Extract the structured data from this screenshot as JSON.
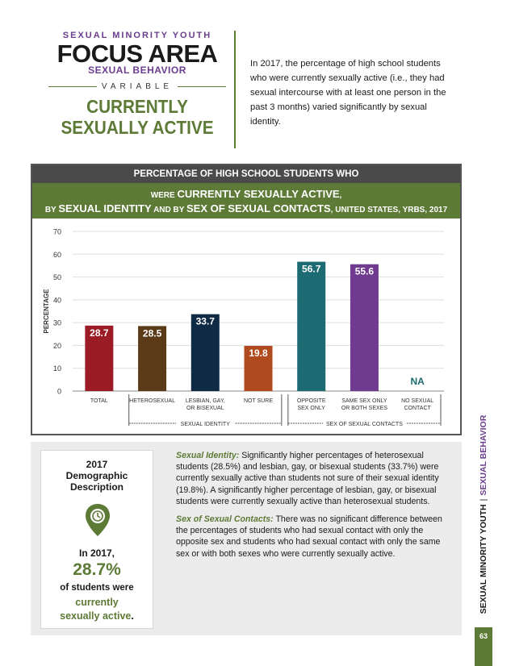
{
  "header": {
    "eyebrow": "SEXUAL MINORITY YOUTH",
    "brand": "FOCUS AREA",
    "subtitle": "SEXUAL BEHAVIOR",
    "variable_label": "VARIABLE",
    "title_line1": "CURRENTLY",
    "title_line2": "SEXUALLY ACTIVE",
    "intro": "In 2017, the percentage of high school students who were currently sexually active (i.e., they had sexual intercourse with at least one person in the past 3 months) varied significantly by sexual identity."
  },
  "chart_header": {
    "line1": "PERCENTAGE OF HIGH SCHOOL STUDENTS WHO",
    "line2_a": "WERE ",
    "line2_b": "CURRENTLY SEXUALLY ACTIVE",
    "line2_c": ",",
    "line3_a": "BY ",
    "line3_b": "SEXUAL IDENTITY",
    "line3_c": " AND BY ",
    "line3_d": "SEX OF SEXUAL CONTACTS",
    "line3_e": ", UNITED STATES, YRBS, 2017"
  },
  "chart_data": {
    "type": "bar",
    "ylabel": "PERCENTAGE",
    "ylim": [
      0,
      70
    ],
    "yticks": [
      "0",
      "10",
      "20",
      "30",
      "40",
      "50",
      "60",
      "70"
    ],
    "categories": [
      {
        "label": [
          "TOTAL"
        ],
        "value": 28.7,
        "value_label": "28.7",
        "color": "#9b1c24"
      },
      {
        "label": [
          "HETEROSEXUAL"
        ],
        "value": 28.5,
        "value_label": "28.5",
        "color": "#5a3a17"
      },
      {
        "label": [
          "LESBIAN, GAY,",
          "OR BISEXUAL"
        ],
        "value": 33.7,
        "value_label": "33.7",
        "color": "#0e2a44"
      },
      {
        "label": [
          "NOT SURE"
        ],
        "value": 19.8,
        "value_label": "19.8",
        "color": "#b04a1e"
      },
      {
        "label": [
          "OPPOSITE",
          "SEX ONLY"
        ],
        "value": 56.7,
        "value_label": "56.7",
        "color": "#1c6b73"
      },
      {
        "label": [
          "SAME SEX ONLY",
          "OR BOTH SEXES"
        ],
        "value": 55.6,
        "value_label": "55.6",
        "color": "#6f3a8f"
      },
      {
        "label": [
          "NO SEXUAL",
          "CONTACT"
        ],
        "value": null,
        "value_label": "NA",
        "color": "#1c6b73"
      }
    ],
    "groups": [
      {
        "label": "SEXUAL IDENTITY",
        "from": 1,
        "to": 3
      },
      {
        "label": "SEX OF SEXUAL CONTACTS",
        "from": 4,
        "to": 6
      }
    ]
  },
  "demographic": {
    "title_l1": "2017",
    "title_l2": "Demographic",
    "title_l3": "Description",
    "year": "In 2017,",
    "pct": "28.7%",
    "of_students": "of students were",
    "cur_l1": "currently",
    "cur_l2": "sexually active",
    "cur_end": "."
  },
  "body": {
    "p1_lead": "Sexual Identity:",
    "p1_text": " Significantly higher percentages of heterosexual students (28.5%) and lesbian, gay, or bisexual students (33.7%) were currently sexually active than students not sure of their sexual identity (19.8%). A significantly higher percentage of lesbian, gay, or bisexual students were currently sexually active than heterosexual students.",
    "p2_lead": "Sex of Sexual Contacts:",
    "p2_text": " There was no significant difference between the percentages of students who had sexual contact with only the opposite sex and students who had sexual contact with only the same sex or with both sexes who were currently sexually active."
  },
  "sidebar": {
    "left": "SEXUAL MINORITY YOUTH",
    "sep": "|",
    "right": "SEXUAL BEHAVIOR",
    "page": "63"
  },
  "colors": {
    "green": "#5d7a36",
    "purple": "#6a3d8f"
  }
}
